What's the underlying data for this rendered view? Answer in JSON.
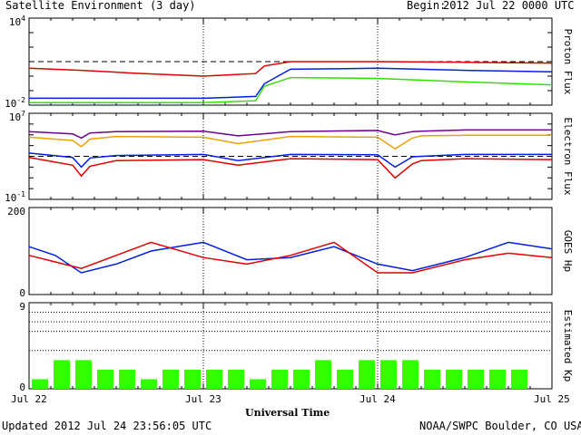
{
  "header": {
    "title": "Satellite Environment (3 day)",
    "begin_label": "Begin:",
    "begin_value": "2012 Jul 22 0000 UTC"
  },
  "footer": {
    "updated": "Updated 2012 Jul 24 23:56:05 UTC",
    "source": "NOAA/SWPC Boulder, CO USA",
    "xlabel": "Universal Time"
  },
  "x_ticks": [
    "Jul 22",
    "Jul 23",
    "Jul 24",
    "Jul 25"
  ],
  "colors": {
    "red": "#e00000",
    "blue": "#0020e0",
    "green": "#30e000",
    "orange": "#f0a000",
    "purple": "#700090",
    "bar": "#33ff00"
  },
  "chart_data": [
    {
      "type": "line",
      "ylabel": "Proton Flux",
      "scale": "log",
      "ylim": [
        0.01,
        10000
      ],
      "y_ticks": [
        {
          "base": "10",
          "exp": "4"
        },
        {
          "base": "10",
          "exp": "-2"
        }
      ],
      "threshold": 10,
      "x_days": [
        0,
        0.3,
        0.6,
        1.0,
        1.3,
        1.35,
        1.5,
        2.0,
        2.5,
        3.0
      ],
      "series": [
        {
          "color_key": "red",
          "values": [
            3.5,
            2.5,
            1.6,
            1.0,
            1.5,
            5,
            10,
            10,
            9,
            8
          ]
        },
        {
          "color_key": "blue",
          "values": [
            0.03,
            0.03,
            0.03,
            0.03,
            0.04,
            0.3,
            3.0,
            3.5,
            2.5,
            2.0
          ]
        },
        {
          "color_key": "green",
          "values": [
            0.015,
            0.015,
            0.015,
            0.015,
            0.02,
            0.2,
            0.8,
            0.7,
            0.4,
            0.25
          ]
        }
      ]
    },
    {
      "type": "line",
      "ylabel": "Electron Flux",
      "scale": "log",
      "ylim": [
        0.1,
        10000000
      ],
      "y_ticks": [
        {
          "base": "10",
          "exp": "7"
        },
        {
          "base": "10",
          "exp": "-1"
        }
      ],
      "threshold": 1000,
      "x_days": [
        0,
        0.25,
        0.3,
        0.35,
        0.5,
        1.0,
        1.2,
        1.5,
        2.0,
        2.1,
        2.2,
        2.25,
        2.5,
        3.0
      ],
      "series": [
        {
          "color_key": "purple",
          "values": [
            200000,
            120000,
            50000,
            150000,
            200000,
            220000,
            80000,
            200000,
            250000,
            100000,
            200000,
            220000,
            280000,
            280000
          ]
        },
        {
          "color_key": "orange",
          "values": [
            60000,
            30000,
            8000,
            40000,
            70000,
            60000,
            15000,
            70000,
            60000,
            5000,
            50000,
            80000,
            90000,
            90000
          ]
        },
        {
          "color_key": "blue",
          "values": [
            2000,
            800,
            100,
            700,
            1200,
            1500,
            400,
            1500,
            1400,
            100,
            900,
            1000,
            1500,
            1500
          ]
        },
        {
          "color_key": "red",
          "values": [
            800,
            150,
            15,
            120,
            400,
            500,
            150,
            600,
            500,
            10,
            200,
            400,
            600,
            500
          ]
        }
      ]
    },
    {
      "type": "line",
      "ylabel": "GOES Hp",
      "scale": "linear",
      "ylim": [
        0,
        200
      ],
      "y_ticks": [
        {
          "base": "200",
          "exp": ""
        },
        {
          "base": "0",
          "exp": ""
        }
      ],
      "x_days": [
        0,
        0.15,
        0.3,
        0.5,
        0.7,
        1.0,
        1.25,
        1.5,
        1.75,
        2.0,
        2.2,
        2.5,
        2.75,
        3.0
      ],
      "series": [
        {
          "color_key": "blue",
          "values": [
            110,
            90,
            50,
            70,
            100,
            120,
            80,
            85,
            110,
            70,
            55,
            85,
            120,
            105
          ]
        },
        {
          "color_key": "red",
          "values": [
            90,
            75,
            60,
            90,
            120,
            85,
            70,
            90,
            120,
            50,
            50,
            80,
            95,
            85
          ]
        }
      ]
    },
    {
      "type": "bar",
      "ylabel": "Estimated Kp",
      "ylim": [
        0,
        9
      ],
      "y_ticks": [
        {
          "base": "9",
          "exp": ""
        },
        {
          "base": "0",
          "exp": ""
        }
      ],
      "gridlines": [
        4,
        6,
        7,
        8
      ],
      "values": [
        1,
        3,
        3,
        2,
        2,
        1,
        2,
        2,
        2,
        2,
        1,
        2,
        2,
        3,
        2,
        3,
        3,
        3,
        2,
        2,
        2,
        2,
        2
      ]
    }
  ]
}
